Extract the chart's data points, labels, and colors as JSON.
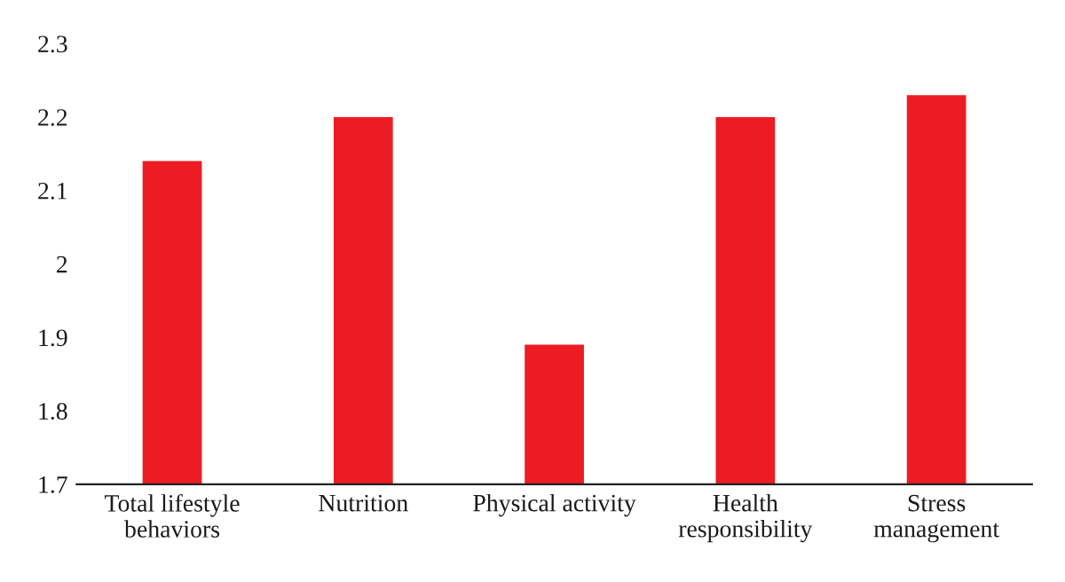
{
  "chart_data": {
    "type": "bar",
    "categories": [
      "Total lifestyle\nbehaviors",
      "Nutrition",
      "Physical activity",
      "Health\nresponsibility",
      "Stress\nmanagement"
    ],
    "values": [
      2.14,
      2.2,
      1.89,
      2.2,
      2.23
    ],
    "color": "#ed1c24",
    "ylim": [
      1.7,
      2.3
    ],
    "yticks": [
      1.7,
      1.8,
      1.9,
      {
        "value": 2.0,
        "label": "2"
      },
      2.1,
      2.2,
      2.3
    ],
    "grid": false,
    "legend": false
  }
}
